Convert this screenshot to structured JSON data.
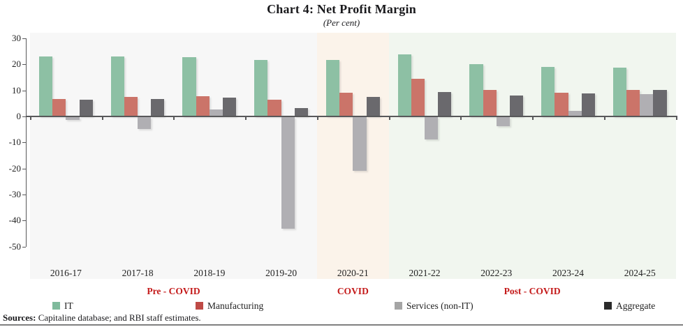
{
  "header": {
    "title": "Chart 4: Net Profit Margin",
    "subtitle": "(Per cent)"
  },
  "chart_data": {
    "type": "bar",
    "categories": [
      "2016-17",
      "2017-18",
      "2018-19",
      "2019-20",
      "2020-21",
      "2021-22",
      "2022-23",
      "2023-24",
      "2024-25"
    ],
    "series": [
      {
        "name": "IT",
        "bar_color": "#8DC0A4",
        "legend_color": "#7FBA9C",
        "values": [
          23.0,
          23.1,
          22.7,
          21.7,
          21.7,
          23.8,
          20.2,
          19.0,
          18.8
        ]
      },
      {
        "name": "Manufacturing",
        "bar_color": "#CB7469",
        "legend_color": "#BE4A46",
        "values": [
          6.8,
          7.5,
          7.8,
          6.4,
          9.2,
          14.6,
          10.2,
          9.0,
          10.1
        ]
      },
      {
        "name": "Services (non-IT)",
        "bar_color": "#B0AFB3",
        "legend_color": "#A5A5A5",
        "values": [
          -1.2,
          -4.5,
          2.6,
          -43.0,
          -20.7,
          -8.7,
          -3.4,
          2.2,
          8.7
        ]
      },
      {
        "name": "Aggregate",
        "bar_color": "#6A696D",
        "legend_color": "#2B2B2B",
        "values": [
          6.5,
          6.7,
          7.2,
          3.1,
          7.4,
          9.5,
          8.0,
          8.9,
          10.3
        ]
      }
    ],
    "ylim": [
      -50,
      30
    ],
    "yticks": [
      30,
      20,
      10,
      0,
      -10,
      -20,
      -30,
      -40,
      -50
    ],
    "grid": false,
    "legend_position": "bottom",
    "phases": [
      {
        "label": "Pre - COVID",
        "start_cat": 0,
        "end_cat": 4,
        "bg": "#F7F7F7"
      },
      {
        "label": "COVID",
        "start_cat": 4,
        "end_cat": 5,
        "bg": "#FBF3EA"
      },
      {
        "label": "Post - COVID",
        "start_cat": 5,
        "end_cat": 9,
        "bg": "#F1F6EF"
      }
    ]
  },
  "footer": {
    "sources_label": "Sources:",
    "sources_text": " Capitaline database; and RBI staff estimates."
  },
  "colors": {
    "phase_label": "#C41A1A",
    "axis": "#58585a"
  }
}
